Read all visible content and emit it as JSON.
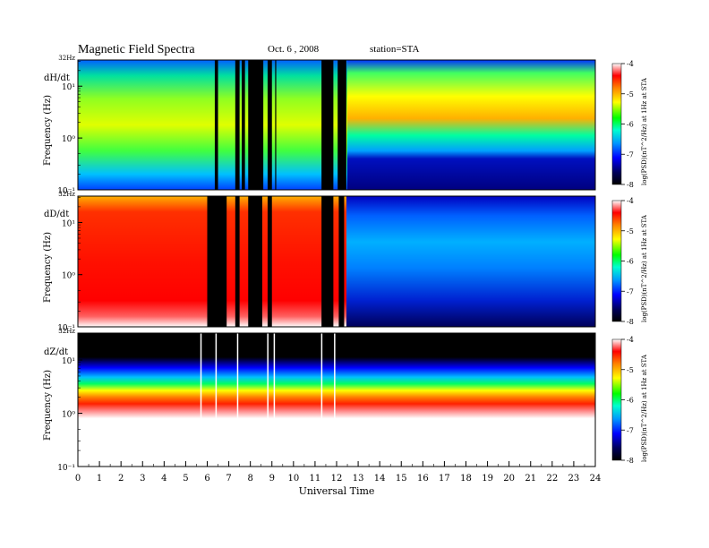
{
  "header": {
    "title": "Magnetic  Field  Spectra",
    "date": "Oct. 6  , 2008",
    "station": "station=STA"
  },
  "colors": {
    "background": "#ffffff",
    "axis": "#000000",
    "colormap": [
      "#000000",
      "#00005a",
      "#0000ff",
      "#0096ff",
      "#00ffd0",
      "#00ff00",
      "#ffff00",
      "#ff8000",
      "#ff0000",
      "#ffffff"
    ]
  },
  "chart_data": [
    {
      "type": "heatmap",
      "panel_label": "dH/dt",
      "ylabel": "Frequency  (Hz)",
      "yscale": "log",
      "ylim": [
        0.1,
        32
      ],
      "yticks": [
        "32Hz",
        "10¹",
        "10⁰",
        "10⁻¹"
      ],
      "xlim": [
        0,
        24
      ],
      "colorbar": {
        "label": "log(PSD)(nT^2/Hz) at 1Hz at STA",
        "range": [
          -8,
          -4
        ],
        "ticks": [
          "-4",
          "-5",
          "-6",
          "-7",
          "-8"
        ]
      },
      "gaps_hours": [
        [
          6.35,
          6.5
        ],
        [
          7.3,
          7.5
        ],
        [
          7.6,
          7.75
        ],
        [
          7.9,
          8.6
        ],
        [
          8.8,
          9.0
        ],
        [
          9.15,
          9.2
        ],
        [
          11.3,
          11.85
        ],
        [
          12.05,
          12.45
        ]
      ]
    },
    {
      "type": "heatmap",
      "panel_label": "dD/dt",
      "ylabel": "Frequency  (Hz)",
      "yscale": "log",
      "ylim": [
        0.1,
        32
      ],
      "yticks": [
        "32Hz",
        "10¹",
        "10⁰",
        "10⁻¹"
      ],
      "xlim": [
        0,
        24
      ],
      "colorbar": {
        "label": "log(PSD)(nT^2/Hz) at 1Hz at STA",
        "range": [
          -8,
          -4
        ],
        "ticks": [
          "-4",
          "-5",
          "-6",
          "-7",
          "-8"
        ]
      },
      "gaps_hours": [
        [
          6.0,
          6.9
        ],
        [
          7.3,
          7.5
        ],
        [
          7.9,
          8.55
        ],
        [
          8.8,
          9.0
        ],
        [
          11.3,
          11.85
        ],
        [
          12.1,
          12.35
        ]
      ]
    },
    {
      "type": "heatmap",
      "panel_label": "dZ/dt",
      "ylabel": "Frequency  (Hz)",
      "yscale": "log",
      "ylim": [
        0.1,
        32
      ],
      "yticks": [
        "32Hz",
        "10¹",
        "10⁰",
        "10⁻¹"
      ],
      "xlim": [
        0,
        24
      ],
      "colorbar": {
        "label": "log(PSD)(nT^2/Hz) at 1Hz at STA",
        "range": [
          -8,
          -4
        ],
        "ticks": [
          "-4",
          "-5",
          "-6",
          "-7",
          "-8"
        ]
      },
      "white_lines_hours": [
        5.7,
        6.4,
        7.4,
        8.8,
        9.1,
        11.3,
        11.9
      ]
    }
  ],
  "xaxis": {
    "label": "Universal Time",
    "ticks": [
      "0",
      "1",
      "2",
      "3",
      "4",
      "5",
      "6",
      "7",
      "8",
      "9",
      "10",
      "11",
      "12",
      "13",
      "14",
      "15",
      "16",
      "17",
      "18",
      "19",
      "20",
      "21",
      "22",
      "23",
      "24"
    ]
  }
}
